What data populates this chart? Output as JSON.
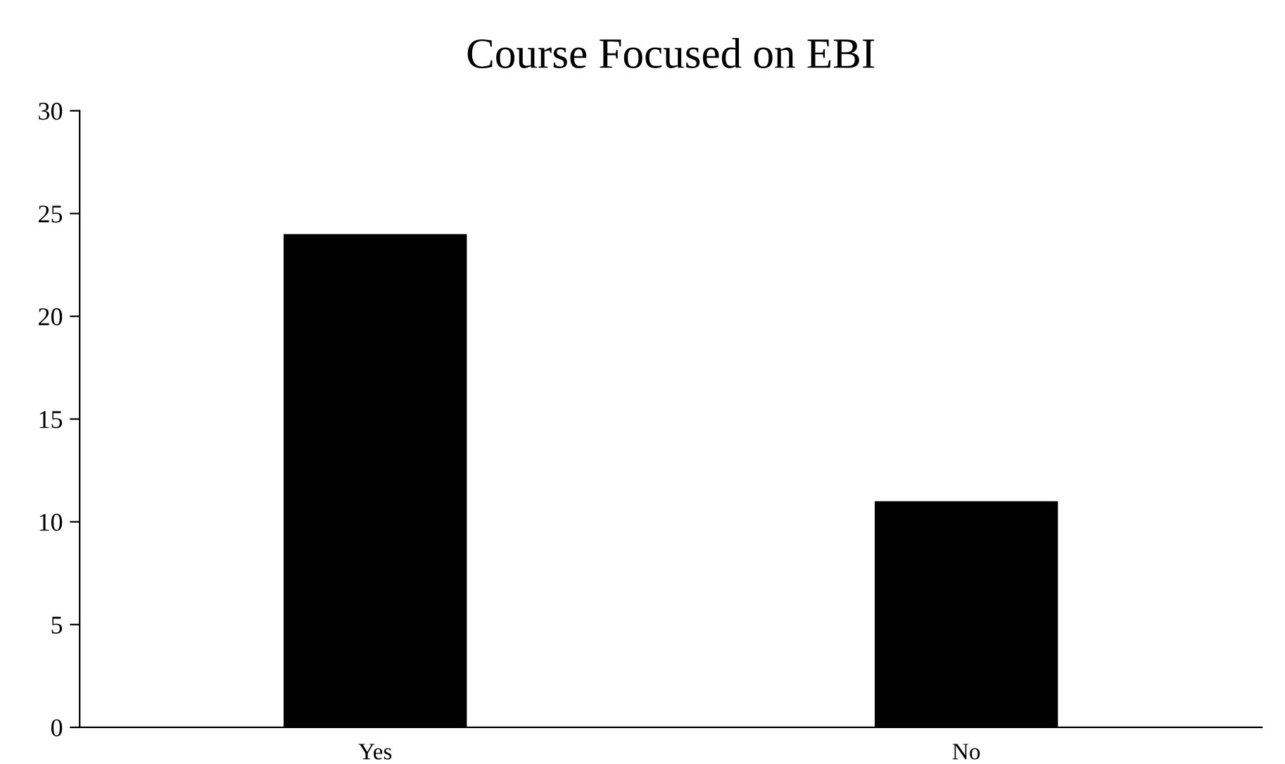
{
  "chart_data": {
    "type": "bar",
    "title": "Course Focused on EBI",
    "categories": [
      "Yes",
      "No"
    ],
    "values": [
      24,
      11
    ],
    "color": "#000000",
    "ylim": [
      0,
      30
    ],
    "yticks": [
      0,
      5,
      10,
      15,
      20,
      25,
      30
    ],
    "grid": false,
    "legend": false
  }
}
